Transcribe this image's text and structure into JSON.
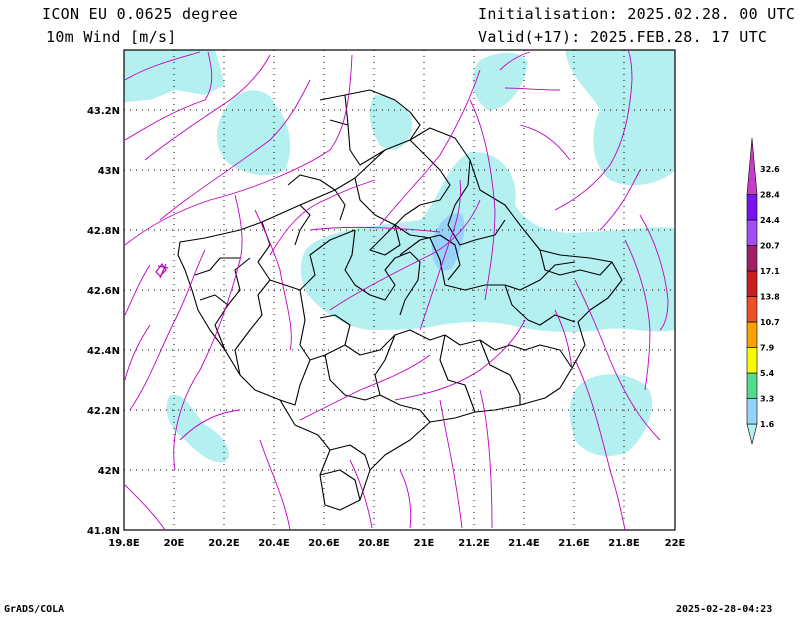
{
  "header": {
    "title_left": "ICON EU 0.0625 degree",
    "subtitle_left": "10m Wind [m/s]",
    "init_text": "Initialisation: 2025.02.28. 00 UTC",
    "valid_text": "Valid(+17): 2025.FEB.28. 17 UTC"
  },
  "footer": {
    "left": "GrADS/COLA",
    "right": "2025-02-28-04:23"
  },
  "map": {
    "lon_ticks": [
      "19.8E",
      "20E",
      "20.2E",
      "20.4E",
      "20.6E",
      "20.8E",
      "21E",
      "21.2E",
      "21.4E",
      "21.6E",
      "21.8E",
      "22E"
    ],
    "lat_ticks": [
      "43.2N",
      "43N",
      "42.8N",
      "42.6N",
      "42.4N",
      "42.2N",
      "42N",
      "41.8N"
    ],
    "lon_range": [
      19.8,
      22.0
    ],
    "lat_range": [
      41.8,
      43.4
    ],
    "grid": true
  },
  "colorbar": {
    "labels": [
      "1.6",
      "3.3",
      "5.4",
      "7.9",
      "10.7",
      "13.8",
      "17.1",
      "20.7",
      "24.4",
      "28.4",
      "32.6"
    ],
    "colors": [
      "#b4f0f0",
      "#96d2fa",
      "#50dc8c",
      "#fafa00",
      "#faa000",
      "#f05028",
      "#c81e1e",
      "#a01e64",
      "#a050f0",
      "#7814f0",
      "#c83cc8"
    ]
  }
}
